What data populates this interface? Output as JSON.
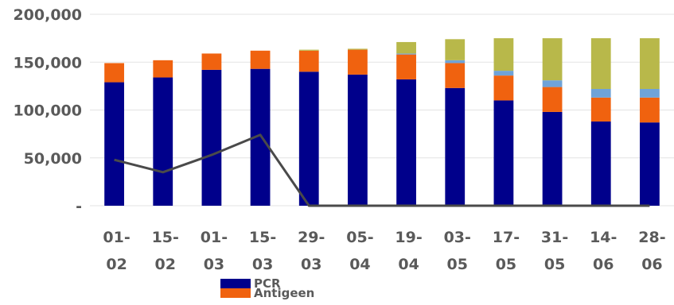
{
  "chart_data": {
    "type": "bar",
    "stacked": true,
    "categories": [
      [
        "01-",
        "02"
      ],
      [
        "15-",
        "02"
      ],
      [
        "01-",
        "03"
      ],
      [
        "15-",
        "03"
      ],
      [
        "29-",
        "03"
      ],
      [
        "05-",
        "04"
      ],
      [
        "19-",
        "04"
      ],
      [
        "03-",
        "05"
      ],
      [
        "17-",
        "05"
      ],
      [
        "31-",
        "05"
      ],
      [
        "14-",
        "06"
      ],
      [
        "28-",
        "06"
      ]
    ],
    "yticks": [
      "-",
      "50,000",
      "100,000",
      "150,000",
      "200,000"
    ],
    "ylim": [
      0,
      200000
    ],
    "grid": true,
    "series": [
      {
        "name": "PCR",
        "color": "#00008b",
        "values": [
          129000,
          134000,
          142000,
          143000,
          140000,
          137000,
          132000,
          123000,
          110000,
          98000,
          88000,
          87000
        ]
      },
      {
        "name": "Antigeen",
        "color": "#f0620f",
        "values": [
          20000,
          18000,
          17000,
          19000,
          22000,
          26000,
          26000,
          26000,
          26000,
          26000,
          25000,
          26000
        ]
      },
      {
        "color": "#6fa3d8",
        "values": [
          0,
          0,
          0,
          0,
          0,
          0,
          1000,
          3000,
          5000,
          7000,
          9000,
          9000
        ]
      },
      {
        "color": "#b8b84a",
        "values": [
          0,
          0,
          0,
          0,
          1000,
          1000,
          12000,
          22000,
          34000,
          44000,
          53000,
          53000
        ]
      }
    ],
    "line": {
      "color": "#4a4a4a",
      "values": [
        48000,
        35000,
        53000,
        74000,
        0,
        0,
        0,
        0,
        0,
        0,
        0,
        0
      ]
    },
    "legend": {
      "position": "bottom-left"
    }
  }
}
